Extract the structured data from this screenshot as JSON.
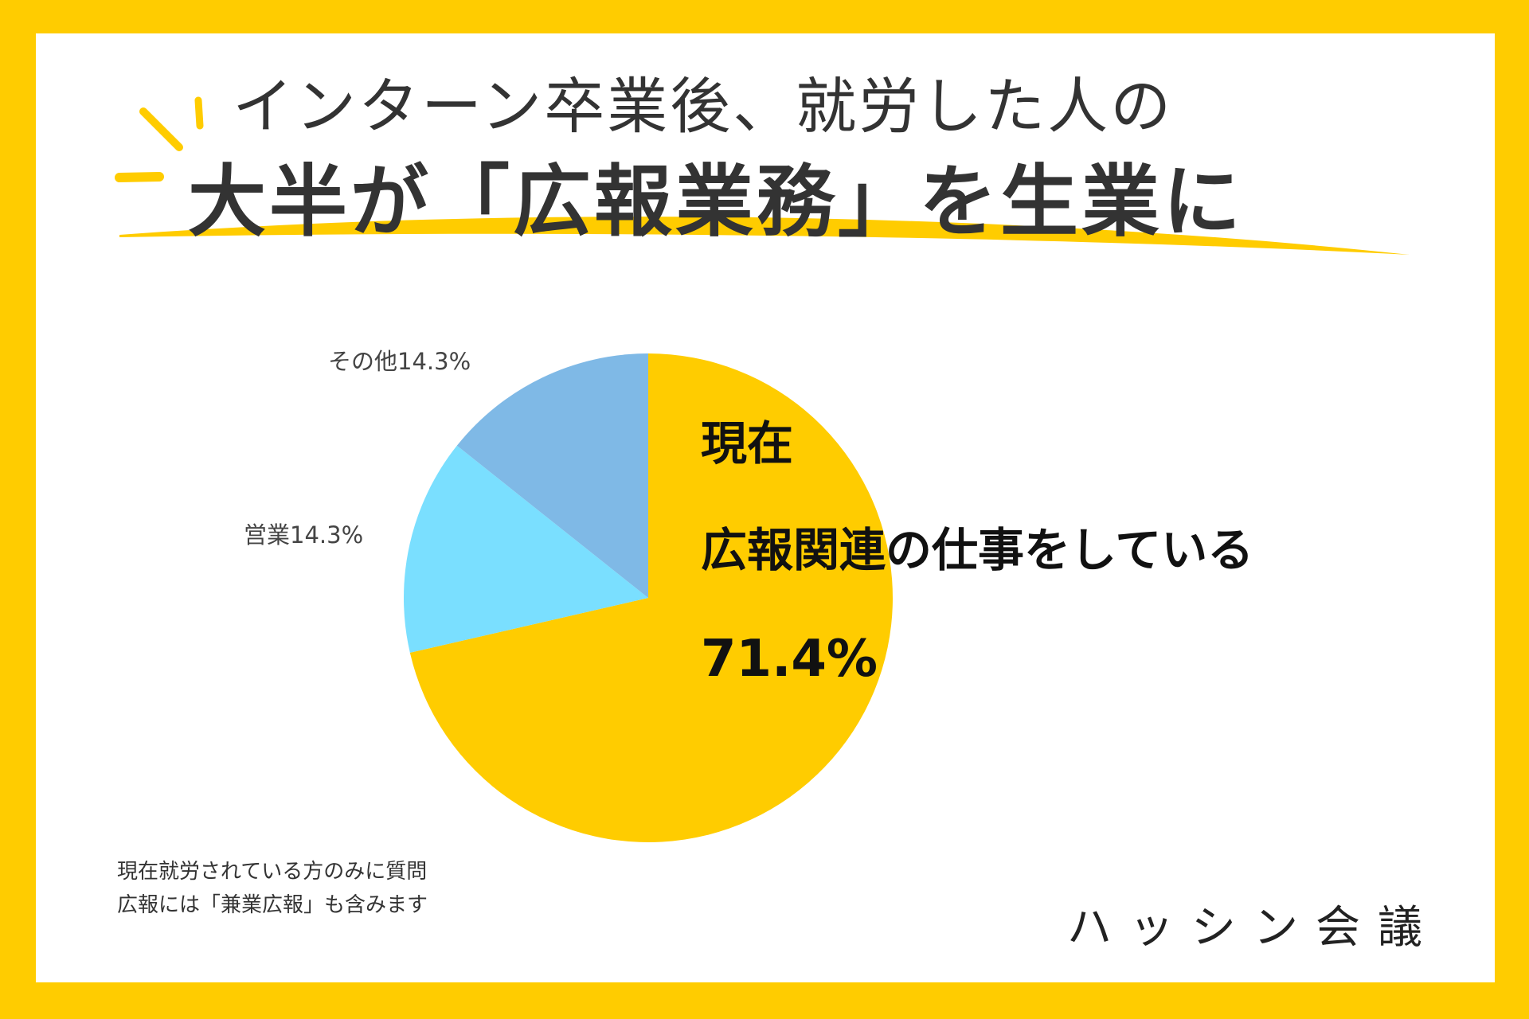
{
  "title": {
    "line1": "インターン卒業後、就労した人の",
    "line2": "大半が「広報業務」を生業に"
  },
  "chart_data": {
    "type": "pie",
    "slices": [
      {
        "label": "現在広報関連の仕事をしている",
        "value": 71.4,
        "display": "71.4%",
        "color": "#FFCC00"
      },
      {
        "label": "営業",
        "value": 14.3,
        "display": "14.3%",
        "color": "#7ADFFF"
      },
      {
        "label": "その他",
        "value": 14.3,
        "display": "14.3%",
        "color": "#7FB9E6"
      }
    ]
  },
  "labels": {
    "other": "その他14.3%",
    "sales": "営業14.3%",
    "main_line1": "現在",
    "main_line2": "広報関連の仕事をしている",
    "main_pct": "71.4%"
  },
  "notes": {
    "line1": "現在就労されている方のみに質問",
    "line2": "広報には「兼業広報」も含みます"
  },
  "logo": {
    "text": "ハッシン会議"
  },
  "colors": {
    "frame": "#FFCC00",
    "accent_stroke": "#FFCC00",
    "text": "#333333"
  }
}
